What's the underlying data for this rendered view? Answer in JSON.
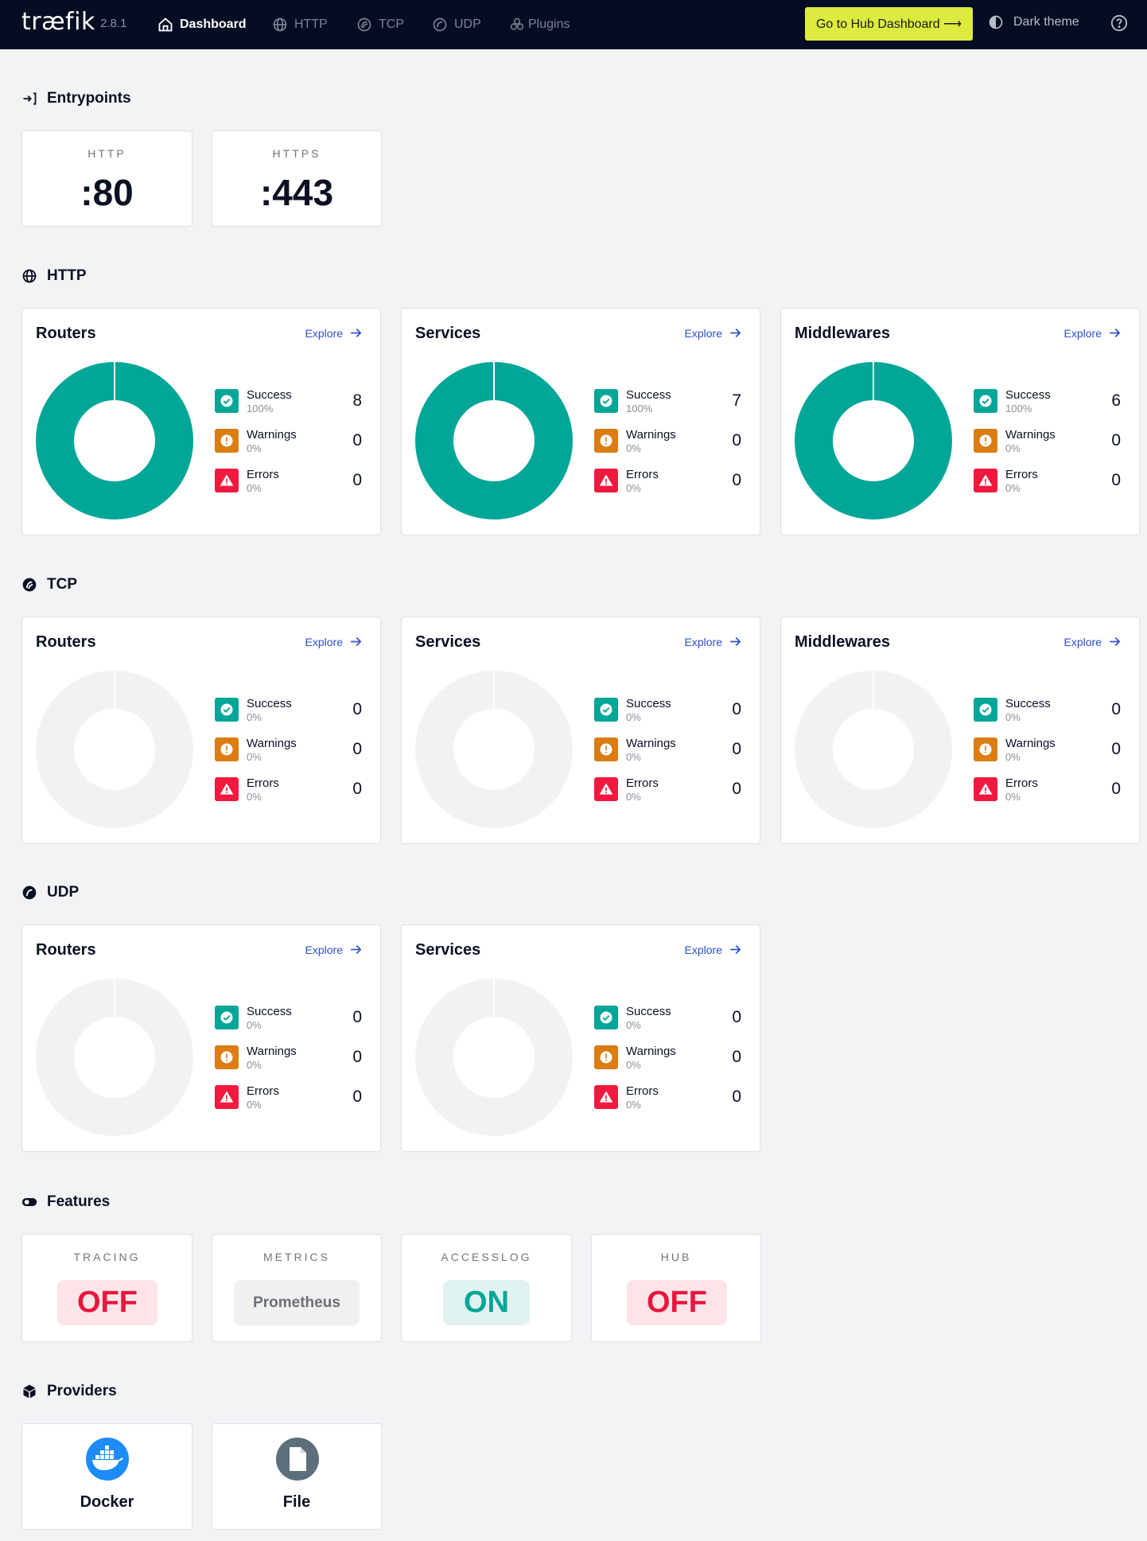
{
  "navbar": {
    "logo": "træfik",
    "version": "2.8.1",
    "items": [
      {
        "label": "Dashboard",
        "icon": "home-icon",
        "active": true
      },
      {
        "label": "HTTP",
        "icon": "globe-icon",
        "active": false
      },
      {
        "label": "TCP",
        "icon": "tcp-icon",
        "active": false
      },
      {
        "label": "UDP",
        "icon": "udp-icon",
        "active": false
      },
      {
        "label": "Plugins",
        "icon": "plugins-icon",
        "active": false
      }
    ],
    "hub_button": "Go to Hub Dashboard ⟶",
    "theme_label": "Dark theme"
  },
  "sections": {
    "entrypoints": "Entrypoints",
    "http": "HTTP",
    "tcp": "TCP",
    "udp": "UDP",
    "features": "Features",
    "providers": "Providers"
  },
  "entrypoints": [
    {
      "name": "HTTP",
      "value": ":80"
    },
    {
      "name": "HTTPS",
      "value": ":443"
    }
  ],
  "explore_label": "Explore",
  "legend_labels": {
    "success": "Success",
    "warnings": "Warnings",
    "errors": "Errors"
  },
  "http": [
    {
      "title": "Routers",
      "success": {
        "count": "8",
        "pct": "100%"
      },
      "warnings": {
        "count": "0",
        "pct": "0%"
      },
      "errors": {
        "count": "0",
        "pct": "0%"
      }
    },
    {
      "title": "Services",
      "success": {
        "count": "7",
        "pct": "100%"
      },
      "warnings": {
        "count": "0",
        "pct": "0%"
      },
      "errors": {
        "count": "0",
        "pct": "0%"
      }
    },
    {
      "title": "Middlewares",
      "success": {
        "count": "6",
        "pct": "100%"
      },
      "warnings": {
        "count": "0",
        "pct": "0%"
      },
      "errors": {
        "count": "0",
        "pct": "0%"
      }
    }
  ],
  "tcp": [
    {
      "title": "Routers",
      "success": {
        "count": "0",
        "pct": "0%"
      },
      "warnings": {
        "count": "0",
        "pct": "0%"
      },
      "errors": {
        "count": "0",
        "pct": "0%"
      }
    },
    {
      "title": "Services",
      "success": {
        "count": "0",
        "pct": "0%"
      },
      "warnings": {
        "count": "0",
        "pct": "0%"
      },
      "errors": {
        "count": "0",
        "pct": "0%"
      }
    },
    {
      "title": "Middlewares",
      "success": {
        "count": "0",
        "pct": "0%"
      },
      "warnings": {
        "count": "0",
        "pct": "0%"
      },
      "errors": {
        "count": "0",
        "pct": "0%"
      }
    }
  ],
  "udp": [
    {
      "title": "Routers",
      "success": {
        "count": "0",
        "pct": "0%"
      },
      "warnings": {
        "count": "0",
        "pct": "0%"
      },
      "errors": {
        "count": "0",
        "pct": "0%"
      }
    },
    {
      "title": "Services",
      "success": {
        "count": "0",
        "pct": "0%"
      },
      "warnings": {
        "count": "0",
        "pct": "0%"
      },
      "errors": {
        "count": "0",
        "pct": "0%"
      }
    }
  ],
  "features": [
    {
      "name": "TRACING",
      "value": "OFF",
      "state": "off"
    },
    {
      "name": "METRICS",
      "value": "Prometheus",
      "state": "text"
    },
    {
      "name": "ACCESSLOG",
      "value": "ON",
      "state": "on"
    },
    {
      "name": "HUB",
      "value": "OFF",
      "state": "off"
    }
  ],
  "providers": [
    {
      "name": "Docker",
      "icon": "docker-icon"
    },
    {
      "name": "File",
      "icon": "file-icon"
    }
  ],
  "colors": {
    "success": "#00a697",
    "warnings": "#db7d11",
    "errors": "#f2193f",
    "empty": "#f2f2f2",
    "navbar": "#050d22",
    "hub_button": "#ddeb40",
    "explore": "#2c4fd1"
  }
}
